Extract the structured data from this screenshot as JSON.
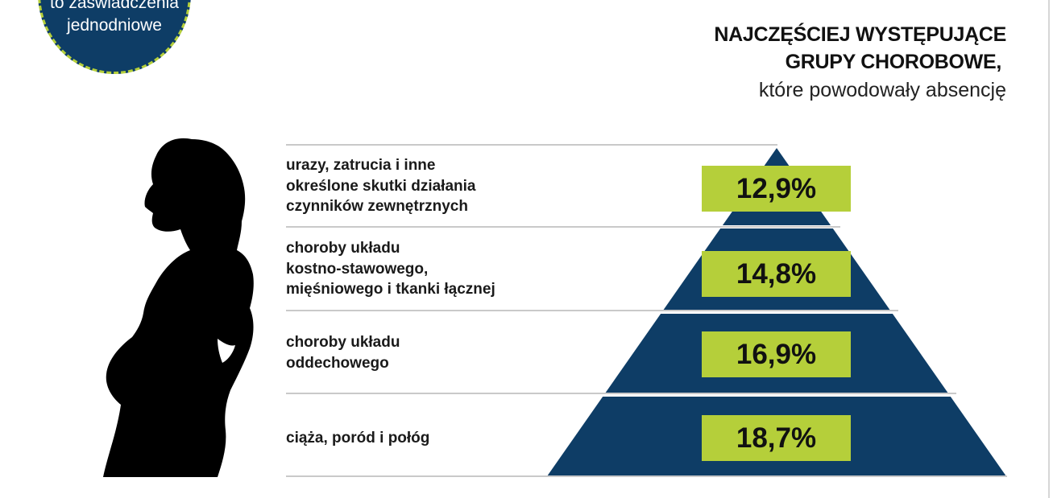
{
  "badge": {
    "line1": "to zaświadczenia",
    "line2": "jednodniowe"
  },
  "heading": {
    "line1": "NAJCZĘŚCIEJ WYSTĘPUJĄCE",
    "line2": "GRUPY CHOROBOWE,",
    "line3": "które powodowały absencję"
  },
  "icons": {
    "silhouette": "pregnant-woman-silhouette-icon"
  },
  "colors": {
    "navy": "#0e3d66",
    "lime": "#b5cf3a",
    "divider": "#c9c9c9"
  },
  "rows": [
    {
      "label_lines": [
        "urazy, zatrucia i inne",
        "określone skutki działania",
        "czynników zewnętrznych"
      ],
      "percent": "12,9%"
    },
    {
      "label_lines": [
        "choroby układu",
        "kostno-stawowego,",
        "mięśniowego i tkanki łącznej"
      ],
      "percent": "14,8%"
    },
    {
      "label_lines": [
        "choroby układu",
        "oddechowego"
      ],
      "percent": "16,9%"
    },
    {
      "label_lines": [
        "ciąża, poród i połóg"
      ],
      "percent": "18,7%"
    }
  ]
}
